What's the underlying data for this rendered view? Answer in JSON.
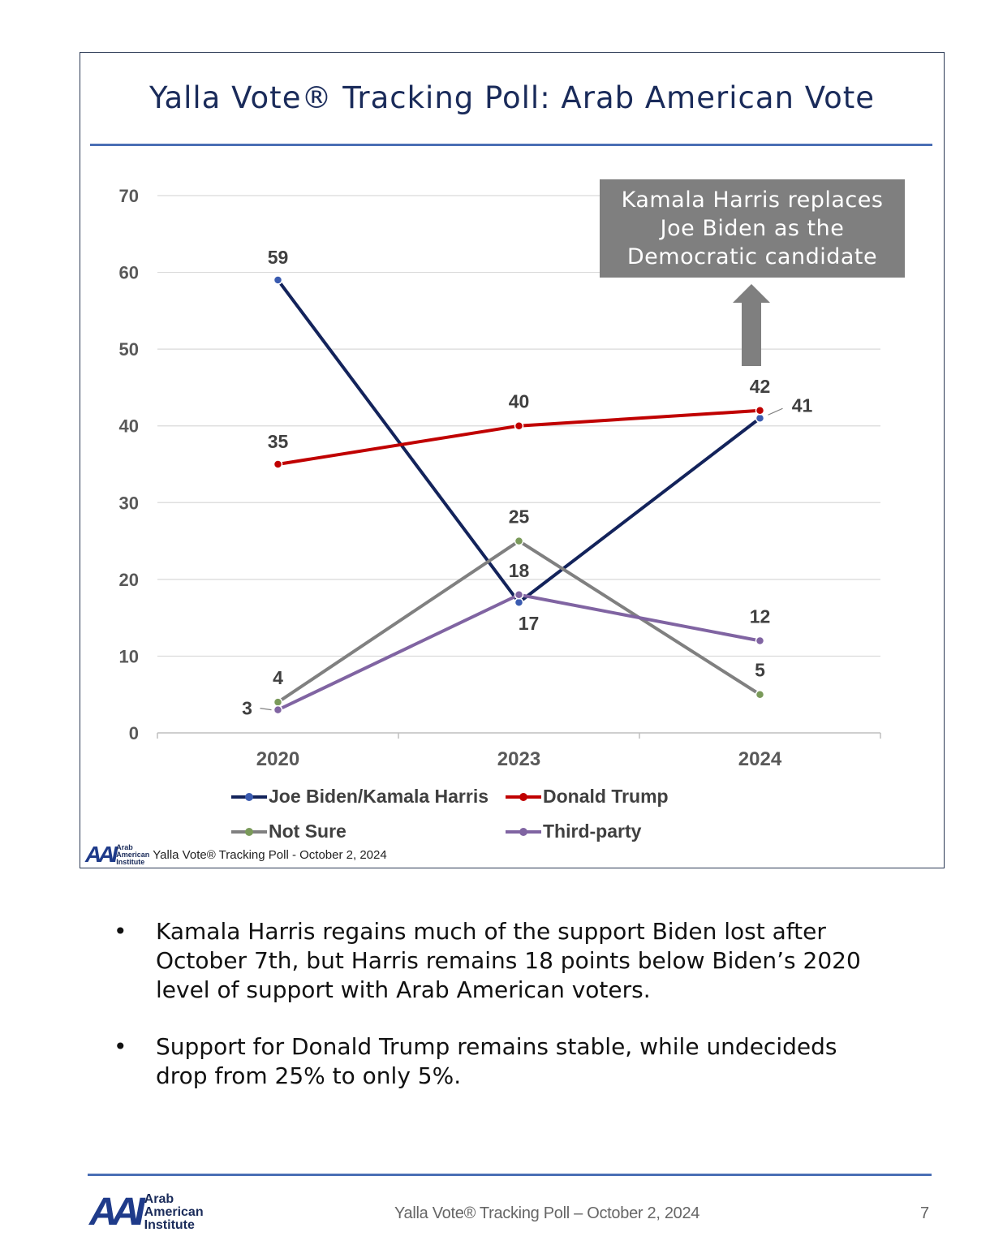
{
  "chart_data": {
    "type": "line",
    "title": "Yalla Vote® Tracking Poll: Arab American Vote",
    "categories": [
      "2020",
      "2023",
      "2024"
    ],
    "ylim": [
      0,
      70
    ],
    "yticks": [
      0,
      10,
      20,
      30,
      40,
      50,
      60,
      70
    ],
    "grid": true,
    "legend_position": "bottom",
    "series": [
      {
        "name": "Joe Biden/Kamala Harris",
        "values": [
          59,
          17,
          41
        ],
        "labels": [
          "59",
          "17",
          "41"
        ],
        "color": "#13235b",
        "marker": "#3a5bb0"
      },
      {
        "name": "Donald Trump",
        "values": [
          35,
          40,
          42
        ],
        "labels": [
          "35",
          "40",
          "42"
        ],
        "color": "#c00000",
        "marker": "#c00000"
      },
      {
        "name": "Not Sure",
        "values": [
          4,
          25,
          5
        ],
        "labels": [
          "4",
          "25",
          "5"
        ],
        "color": "#808080",
        "marker": "#7a9a5a"
      },
      {
        "name": "Third-party",
        "values": [
          3,
          18,
          12
        ],
        "labels": [
          "3",
          "18",
          "12"
        ],
        "color": "#8064a2",
        "marker": "#8064a2"
      }
    ],
    "annotation": {
      "text_lines": [
        "Kamala Harris replaces",
        "Joe Biden as the",
        "Democratic candidate"
      ],
      "box_color": "#7f7f7f",
      "text_color": "#ffffff"
    },
    "source": "Yalla Vote® Tracking Poll - October 2, 2024"
  },
  "logo": {
    "line1": "Arab",
    "line2": "American",
    "line3": "Institute",
    "mark": "AAI"
  },
  "bullets": [
    "Kamala Harris regains much of the support Biden lost after October 7th, but Harris remains 18 points below Biden’s 2020 level of support with Arab American voters.",
    "Support for Donald Trump remains stable, while undecideds drop from 25% to only 5%."
  ],
  "bullet_symbol": "•",
  "footer": {
    "text": "Yalla Vote® Tracking Poll – October 2, 2024",
    "page": "7"
  }
}
